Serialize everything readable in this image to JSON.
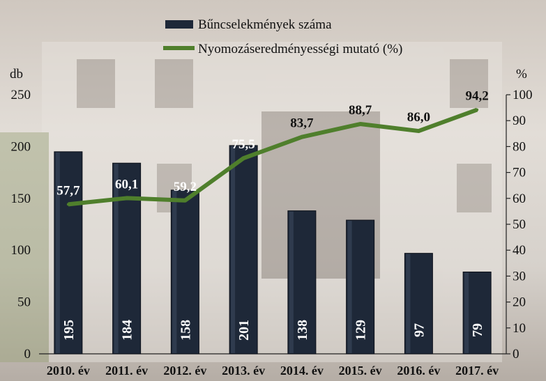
{
  "chart_data": {
    "type": "bar",
    "categories": [
      "2010. év",
      "2011. év",
      "2012. év",
      "2013. év",
      "2014. év",
      "2015. év",
      "2016. év",
      "2017. év"
    ],
    "series": [
      {
        "name": "Bűncselekmények száma",
        "type": "bar",
        "axis": "left",
        "values": [
          195,
          184,
          158,
          201,
          138,
          129,
          97,
          79
        ],
        "labels": [
          "195",
          "184",
          "158",
          "201",
          "138",
          "129",
          "97",
          "79"
        ],
        "color": "#1e2838"
      },
      {
        "name": "Nyomozáseredményességi mutató (%)",
        "type": "line",
        "axis": "right",
        "values": [
          57.7,
          60.1,
          59.2,
          75.5,
          83.7,
          88.7,
          86.0,
          94.2
        ],
        "labels": [
          "57,7",
          "60,1",
          "59,2",
          "75,5",
          "83,7",
          "88,7",
          "86,0",
          "94,2"
        ],
        "color": "#4f7f2c"
      }
    ],
    "y_left": {
      "label": "db",
      "min": 0,
      "max": 250,
      "ticks": [
        0,
        50,
        100,
        150,
        200,
        250
      ]
    },
    "y_right": {
      "label": "%",
      "min": 0,
      "max": 100,
      "ticks": [
        0,
        10,
        20,
        30,
        40,
        50,
        60,
        70,
        80,
        90,
        100
      ]
    },
    "legend": {
      "position": "top"
    },
    "grid": false
  }
}
